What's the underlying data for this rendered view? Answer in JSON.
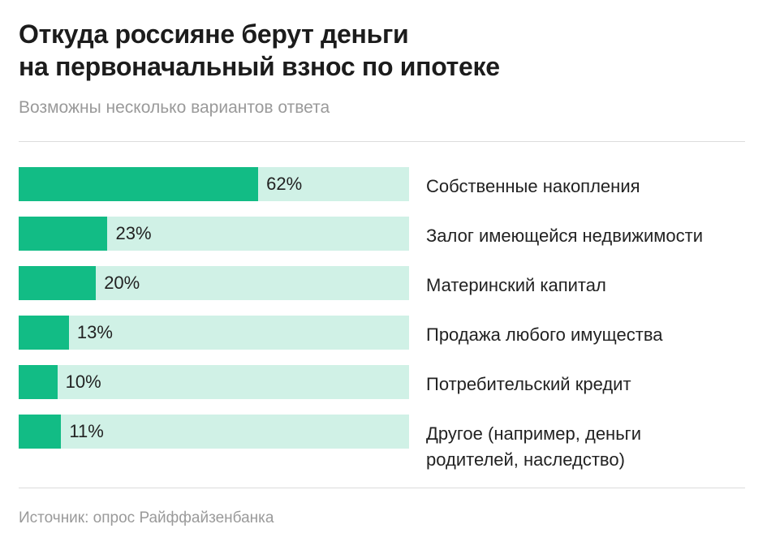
{
  "header": {
    "title_line1": "Откуда россияне берут деньги",
    "title_line2": "на первоначальный взнос по ипотеке",
    "subtitle": "Возможны несколько вариантов ответа"
  },
  "footer": {
    "source": "Источник: опрос Райффайзенбанка"
  },
  "colors": {
    "bar": "#12bc85",
    "track": "#d0f1e6"
  },
  "chart_data": {
    "type": "bar",
    "orientation": "horizontal",
    "xlim": [
      0,
      100
    ],
    "grid": false,
    "categories": [
      "Собственные накопления",
      "Залог имеющейся недвижимости",
      "Материнский капитал",
      "Продажа любого имущества",
      "Потребительский кредит",
      "Другое (например, деньги родителей, наследство)"
    ],
    "values": [
      62,
      23,
      20,
      13,
      10,
      11
    ],
    "data_labels": [
      "62%",
      "23%",
      "20%",
      "13%",
      "10%",
      "11%"
    ]
  }
}
